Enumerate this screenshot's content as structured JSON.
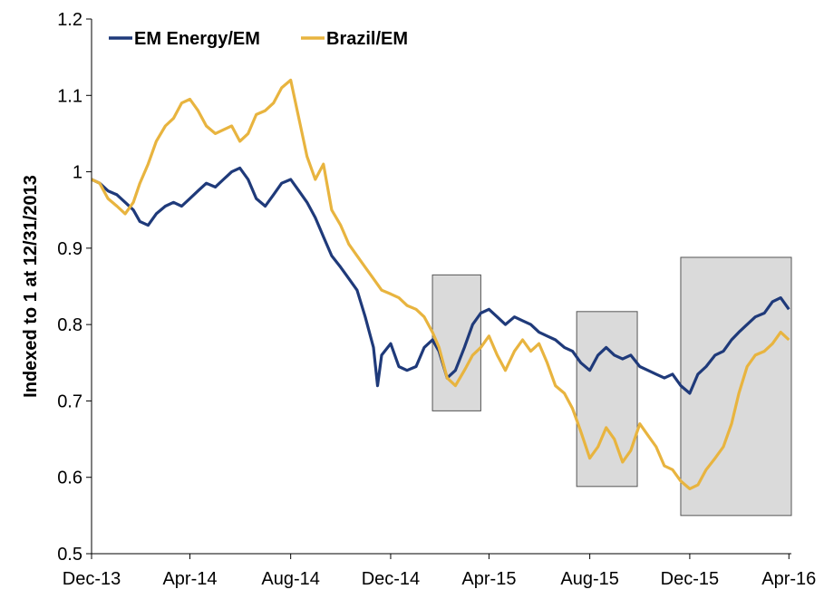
{
  "chart_data": {
    "type": "line",
    "title": "",
    "xlabel": "",
    "ylabel": "Indexed to 1 at 12/31/2013",
    "ylim": [
      0.5,
      1.2
    ],
    "yticks": [
      "0.5",
      "0.6",
      "0.7",
      "0.8",
      "0.9",
      "1",
      "1.1",
      "1.2"
    ],
    "xticks": [
      {
        "label": "Dec-13",
        "date": "2013-12-31"
      },
      {
        "label": "Apr-14",
        "date": "2014-04-30"
      },
      {
        "label": "Aug-14",
        "date": "2014-08-31"
      },
      {
        "label": "Dec-14",
        "date": "2014-12-31"
      },
      {
        "label": "Apr-15",
        "date": "2015-04-30"
      },
      {
        "label": "Aug-15",
        "date": "2015-08-31"
      },
      {
        "label": "Dec-15",
        "date": "2015-12-31"
      },
      {
        "label": "Apr-16",
        "date": "2016-04-30"
      }
    ],
    "xlim": [
      "2013-12-31",
      "2016-05-03"
    ],
    "grid": false,
    "legend_position": "top-left",
    "series": [
      {
        "name": "EM Energy/EM",
        "color": "#1f3a7a",
        "points": [
          [
            "2013-12-31",
            0.99
          ],
          [
            "2014-01-10",
            0.985
          ],
          [
            "2014-01-20",
            0.975
          ],
          [
            "2014-01-31",
            0.97
          ],
          [
            "2014-02-10",
            0.96
          ],
          [
            "2014-02-20",
            0.95
          ],
          [
            "2014-02-28",
            0.935
          ],
          [
            "2014-03-10",
            0.93
          ],
          [
            "2014-03-20",
            0.945
          ],
          [
            "2014-03-31",
            0.955
          ],
          [
            "2014-04-10",
            0.96
          ],
          [
            "2014-04-20",
            0.955
          ],
          [
            "2014-04-30",
            0.965
          ],
          [
            "2014-05-10",
            0.975
          ],
          [
            "2014-05-20",
            0.985
          ],
          [
            "2014-05-31",
            0.98
          ],
          [
            "2014-06-10",
            0.99
          ],
          [
            "2014-06-20",
            1.0
          ],
          [
            "2014-06-30",
            1.005
          ],
          [
            "2014-07-10",
            0.99
          ],
          [
            "2014-07-20",
            0.965
          ],
          [
            "2014-07-31",
            0.955
          ],
          [
            "2014-08-10",
            0.97
          ],
          [
            "2014-08-20",
            0.985
          ],
          [
            "2014-08-31",
            0.99
          ],
          [
            "2014-09-10",
            0.975
          ],
          [
            "2014-09-20",
            0.96
          ],
          [
            "2014-09-30",
            0.94
          ],
          [
            "2014-10-10",
            0.915
          ],
          [
            "2014-10-20",
            0.89
          ],
          [
            "2014-10-31",
            0.875
          ],
          [
            "2014-11-10",
            0.86
          ],
          [
            "2014-11-20",
            0.845
          ],
          [
            "2014-11-30",
            0.81
          ],
          [
            "2014-12-10",
            0.77
          ],
          [
            "2014-12-15",
            0.72
          ],
          [
            "2014-12-20",
            0.76
          ],
          [
            "2014-12-31",
            0.775
          ],
          [
            "2015-01-10",
            0.745
          ],
          [
            "2015-01-20",
            0.74
          ],
          [
            "2015-01-31",
            0.745
          ],
          [
            "2015-02-10",
            0.77
          ],
          [
            "2015-02-20",
            0.78
          ],
          [
            "2015-02-28",
            0.765
          ],
          [
            "2015-03-10",
            0.73
          ],
          [
            "2015-03-20",
            0.74
          ],
          [
            "2015-03-31",
            0.77
          ],
          [
            "2015-04-10",
            0.8
          ],
          [
            "2015-04-20",
            0.815
          ],
          [
            "2015-04-30",
            0.82
          ],
          [
            "2015-05-10",
            0.81
          ],
          [
            "2015-05-20",
            0.8
          ],
          [
            "2015-05-31",
            0.81
          ],
          [
            "2015-06-10",
            0.805
          ],
          [
            "2015-06-20",
            0.8
          ],
          [
            "2015-06-30",
            0.79
          ],
          [
            "2015-07-10",
            0.785
          ],
          [
            "2015-07-20",
            0.78
          ],
          [
            "2015-07-31",
            0.77
          ],
          [
            "2015-08-10",
            0.765
          ],
          [
            "2015-08-20",
            0.75
          ],
          [
            "2015-08-31",
            0.74
          ],
          [
            "2015-09-10",
            0.76
          ],
          [
            "2015-09-20",
            0.77
          ],
          [
            "2015-09-30",
            0.76
          ],
          [
            "2015-10-10",
            0.755
          ],
          [
            "2015-10-20",
            0.76
          ],
          [
            "2015-10-31",
            0.745
          ],
          [
            "2015-11-10",
            0.74
          ],
          [
            "2015-11-20",
            0.735
          ],
          [
            "2015-11-30",
            0.73
          ],
          [
            "2015-12-10",
            0.735
          ],
          [
            "2015-12-20",
            0.72
          ],
          [
            "2015-12-31",
            0.71
          ],
          [
            "2016-01-10",
            0.735
          ],
          [
            "2016-01-20",
            0.745
          ],
          [
            "2016-01-31",
            0.76
          ],
          [
            "2016-02-10",
            0.765
          ],
          [
            "2016-02-20",
            0.78
          ],
          [
            "2016-02-29",
            0.79
          ],
          [
            "2016-03-10",
            0.8
          ],
          [
            "2016-03-20",
            0.81
          ],
          [
            "2016-03-31",
            0.815
          ],
          [
            "2016-04-10",
            0.83
          ],
          [
            "2016-04-20",
            0.835
          ],
          [
            "2016-04-30",
            0.82
          ]
        ]
      },
      {
        "name": "Brazil/EM",
        "color": "#e8b43f",
        "points": [
          [
            "2013-12-31",
            0.99
          ],
          [
            "2014-01-10",
            0.985
          ],
          [
            "2014-01-20",
            0.965
          ],
          [
            "2014-01-31",
            0.955
          ],
          [
            "2014-02-10",
            0.945
          ],
          [
            "2014-02-20",
            0.96
          ],
          [
            "2014-02-28",
            0.985
          ],
          [
            "2014-03-10",
            1.01
          ],
          [
            "2014-03-20",
            1.04
          ],
          [
            "2014-03-31",
            1.06
          ],
          [
            "2014-04-10",
            1.07
          ],
          [
            "2014-04-20",
            1.09
          ],
          [
            "2014-04-30",
            1.095
          ],
          [
            "2014-05-10",
            1.08
          ],
          [
            "2014-05-20",
            1.06
          ],
          [
            "2014-05-31",
            1.05
          ],
          [
            "2014-06-10",
            1.055
          ],
          [
            "2014-06-20",
            1.06
          ],
          [
            "2014-06-30",
            1.04
          ],
          [
            "2014-07-10",
            1.05
          ],
          [
            "2014-07-20",
            1.075
          ],
          [
            "2014-07-31",
            1.08
          ],
          [
            "2014-08-10",
            1.09
          ],
          [
            "2014-08-20",
            1.11
          ],
          [
            "2014-08-31",
            1.12
          ],
          [
            "2014-09-10",
            1.07
          ],
          [
            "2014-09-20",
            1.02
          ],
          [
            "2014-09-30",
            0.99
          ],
          [
            "2014-10-10",
            1.01
          ],
          [
            "2014-10-20",
            0.95
          ],
          [
            "2014-10-31",
            0.93
          ],
          [
            "2014-11-10",
            0.905
          ],
          [
            "2014-11-20",
            0.89
          ],
          [
            "2014-11-30",
            0.875
          ],
          [
            "2014-12-10",
            0.86
          ],
          [
            "2014-12-20",
            0.845
          ],
          [
            "2014-12-31",
            0.84
          ],
          [
            "2015-01-10",
            0.835
          ],
          [
            "2015-01-20",
            0.825
          ],
          [
            "2015-01-31",
            0.82
          ],
          [
            "2015-02-10",
            0.81
          ],
          [
            "2015-02-20",
            0.79
          ],
          [
            "2015-02-28",
            0.77
          ],
          [
            "2015-03-10",
            0.73
          ],
          [
            "2015-03-20",
            0.72
          ],
          [
            "2015-03-31",
            0.74
          ],
          [
            "2015-04-10",
            0.76
          ],
          [
            "2015-04-20",
            0.77
          ],
          [
            "2015-04-30",
            0.785
          ],
          [
            "2015-05-10",
            0.76
          ],
          [
            "2015-05-20",
            0.74
          ],
          [
            "2015-05-31",
            0.765
          ],
          [
            "2015-06-10",
            0.78
          ],
          [
            "2015-06-20",
            0.765
          ],
          [
            "2015-06-30",
            0.775
          ],
          [
            "2015-07-10",
            0.75
          ],
          [
            "2015-07-20",
            0.72
          ],
          [
            "2015-07-31",
            0.71
          ],
          [
            "2015-08-10",
            0.69
          ],
          [
            "2015-08-20",
            0.66
          ],
          [
            "2015-08-31",
            0.625
          ],
          [
            "2015-09-10",
            0.64
          ],
          [
            "2015-09-20",
            0.665
          ],
          [
            "2015-09-30",
            0.65
          ],
          [
            "2015-10-10",
            0.62
          ],
          [
            "2015-10-20",
            0.635
          ],
          [
            "2015-10-31",
            0.67
          ],
          [
            "2015-11-10",
            0.655
          ],
          [
            "2015-11-20",
            0.64
          ],
          [
            "2015-11-30",
            0.615
          ],
          [
            "2015-12-10",
            0.61
          ],
          [
            "2015-12-20",
            0.595
          ],
          [
            "2015-12-31",
            0.585
          ],
          [
            "2016-01-10",
            0.59
          ],
          [
            "2016-01-20",
            0.61
          ],
          [
            "2016-01-31",
            0.625
          ],
          [
            "2016-02-10",
            0.64
          ],
          [
            "2016-02-20",
            0.67
          ],
          [
            "2016-02-29",
            0.71
          ],
          [
            "2016-03-10",
            0.745
          ],
          [
            "2016-03-20",
            0.76
          ],
          [
            "2016-03-31",
            0.765
          ],
          [
            "2016-04-10",
            0.775
          ],
          [
            "2016-04-20",
            0.79
          ],
          [
            "2016-04-30",
            0.78
          ]
        ]
      }
    ],
    "highlight_boxes": [
      {
        "x0": "2015-02-20",
        "x1": "2015-04-20",
        "y0": 0.687,
        "y1": 0.865
      },
      {
        "x0": "2015-08-15",
        "x1": "2015-10-28",
        "y0": 0.588,
        "y1": 0.817
      },
      {
        "x0": "2015-12-20",
        "x1": "2016-05-03",
        "y0": 0.55,
        "y1": 0.888
      }
    ]
  }
}
